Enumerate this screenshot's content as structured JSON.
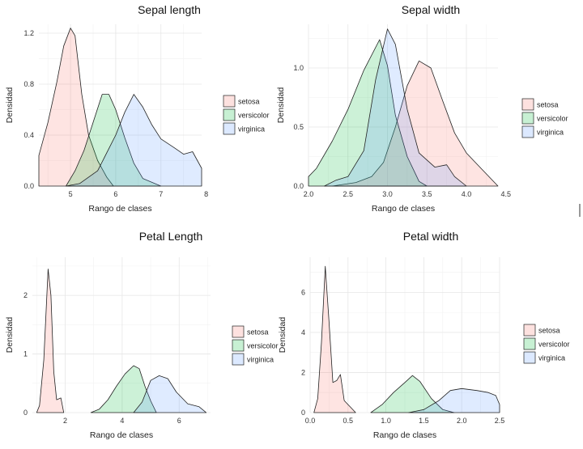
{
  "legend_entries": [
    "setosa",
    "versicolor",
    "virginica"
  ],
  "colors": {
    "setosa": "#f8766d",
    "versicolor": "#00ba38",
    "virginica": "#619cff"
  },
  "chart_data": [
    {
      "type": "area",
      "title": "Sepal length",
      "xlabel": "Rango de clases",
      "ylabel": "Densidad",
      "xlim": [
        4.3,
        7.9
      ],
      "ylim": [
        0,
        1.27
      ],
      "xticks": [
        5,
        6,
        7,
        8
      ],
      "yticks": [
        0.0,
        0.4,
        0.8,
        1.2
      ],
      "xtick_labels": [
        "5",
        "6",
        "7",
        "8"
      ],
      "ytick_labels": [
        "0.0",
        "0.4",
        "0.8",
        "1.2"
      ],
      "legend": "right",
      "grid": true,
      "series": [
        {
          "name": "setosa",
          "points": [
            [
              4.3,
              0.24
            ],
            [
              4.5,
              0.5
            ],
            [
              4.7,
              0.82
            ],
            [
              4.85,
              1.1
            ],
            [
              5.0,
              1.24
            ],
            [
              5.1,
              1.18
            ],
            [
              5.25,
              0.72
            ],
            [
              5.4,
              0.4
            ],
            [
              5.6,
              0.2
            ],
            [
              5.8,
              0.07
            ],
            [
              5.95,
              0.0
            ]
          ]
        },
        {
          "name": "versicolor",
          "points": [
            [
              4.9,
              0.0
            ],
            [
              5.1,
              0.12
            ],
            [
              5.3,
              0.28
            ],
            [
              5.5,
              0.5
            ],
            [
              5.7,
              0.72
            ],
            [
              5.85,
              0.72
            ],
            [
              6.0,
              0.6
            ],
            [
              6.2,
              0.38
            ],
            [
              6.4,
              0.18
            ],
            [
              6.6,
              0.06
            ],
            [
              7.0,
              0.0
            ]
          ]
        },
        {
          "name": "virginica",
          "points": [
            [
              4.9,
              0.0
            ],
            [
              5.2,
              0.02
            ],
            [
              5.6,
              0.12
            ],
            [
              6.0,
              0.4
            ],
            [
              6.2,
              0.58
            ],
            [
              6.4,
              0.72
            ],
            [
              6.6,
              0.62
            ],
            [
              6.8,
              0.48
            ],
            [
              7.0,
              0.37
            ],
            [
              7.3,
              0.3
            ],
            [
              7.5,
              0.25
            ],
            [
              7.7,
              0.27
            ],
            [
              7.9,
              0.14
            ],
            [
              7.9,
              0.0
            ]
          ]
        }
      ]
    },
    {
      "type": "area",
      "title": "Sepal width",
      "xlabel": "Rango de clases",
      "ylabel": "Densidad",
      "xlim": [
        2.0,
        4.4
      ],
      "ylim": [
        0,
        1.37
      ],
      "xticks": [
        2.0,
        2.5,
        3.0,
        3.5,
        4.0,
        4.5
      ],
      "yticks": [
        0.0,
        0.5,
        1.0
      ],
      "xtick_labels": [
        "2.0",
        "2.5",
        "3.0",
        "3.5",
        "4.0",
        "4.5"
      ],
      "ytick_labels": [
        "0.0",
        "0.5",
        "1.0"
      ],
      "legend": "right",
      "grid": true,
      "series": [
        {
          "name": "setosa",
          "points": [
            [
              2.3,
              0.0
            ],
            [
              2.6,
              0.03
            ],
            [
              2.8,
              0.08
            ],
            [
              2.95,
              0.2
            ],
            [
              3.1,
              0.5
            ],
            [
              3.25,
              0.85
            ],
            [
              3.4,
              1.06
            ],
            [
              3.55,
              1.0
            ],
            [
              3.7,
              0.72
            ],
            [
              3.85,
              0.45
            ],
            [
              4.0,
              0.28
            ],
            [
              4.2,
              0.14
            ],
            [
              4.4,
              0.0
            ]
          ]
        },
        {
          "name": "versicolor",
          "points": [
            [
              2.0,
              0.08
            ],
            [
              2.1,
              0.15
            ],
            [
              2.3,
              0.38
            ],
            [
              2.5,
              0.65
            ],
            [
              2.7,
              0.98
            ],
            [
              2.9,
              1.24
            ],
            [
              3.0,
              1.02
            ],
            [
              3.1,
              0.6
            ],
            [
              3.25,
              0.25
            ],
            [
              3.4,
              0.04
            ],
            [
              3.5,
              0.0
            ]
          ]
        },
        {
          "name": "virginica",
          "points": [
            [
              2.2,
              0.0
            ],
            [
              2.35,
              0.05
            ],
            [
              2.5,
              0.08
            ],
            [
              2.7,
              0.3
            ],
            [
              2.85,
              0.9
            ],
            [
              3.0,
              1.33
            ],
            [
              3.1,
              1.2
            ],
            [
              3.25,
              0.65
            ],
            [
              3.4,
              0.28
            ],
            [
              3.6,
              0.16
            ],
            [
              3.75,
              0.18
            ],
            [
              3.85,
              0.08
            ],
            [
              4.0,
              0.0
            ]
          ]
        }
      ]
    },
    {
      "type": "area",
      "title": "Petal Length",
      "xlabel": "Rango de clases",
      "ylabel": "Densidad",
      "xlim": [
        0.85,
        7.1
      ],
      "ylim": [
        0,
        2.65
      ],
      "xticks": [
        2,
        4,
        6
      ],
      "yticks": [
        0,
        1,
        2
      ],
      "xtick_labels": [
        "2",
        "4",
        "6"
      ],
      "ytick_labels": [
        "0",
        "1",
        "2"
      ],
      "legend": "right",
      "grid": true,
      "series": [
        {
          "name": "setosa",
          "points": [
            [
              1.0,
              0.0
            ],
            [
              1.1,
              0.12
            ],
            [
              1.25,
              0.9
            ],
            [
              1.4,
              2.45
            ],
            [
              1.5,
              2.0
            ],
            [
              1.6,
              0.7
            ],
            [
              1.7,
              0.22
            ],
            [
              1.85,
              0.25
            ],
            [
              1.95,
              0.0
            ]
          ]
        },
        {
          "name": "versicolor",
          "points": [
            [
              2.9,
              0.0
            ],
            [
              3.2,
              0.06
            ],
            [
              3.5,
              0.22
            ],
            [
              3.8,
              0.45
            ],
            [
              4.1,
              0.66
            ],
            [
              4.4,
              0.8
            ],
            [
              4.6,
              0.75
            ],
            [
              4.8,
              0.45
            ],
            [
              5.0,
              0.2
            ],
            [
              5.2,
              0.0
            ]
          ]
        },
        {
          "name": "virginica",
          "points": [
            [
              4.4,
              0.0
            ],
            [
              4.7,
              0.18
            ],
            [
              5.0,
              0.55
            ],
            [
              5.3,
              0.63
            ],
            [
              5.6,
              0.58
            ],
            [
              5.9,
              0.35
            ],
            [
              6.3,
              0.15
            ],
            [
              6.7,
              0.1
            ],
            [
              6.95,
              0.0
            ]
          ]
        }
      ]
    },
    {
      "type": "area",
      "title": "Petal width",
      "xlabel": "Rango de clases",
      "ylabel": "Densidad",
      "xlim": [
        0.0,
        2.5
      ],
      "ylim": [
        0,
        7.75
      ],
      "xticks": [
        0.0,
        0.5,
        1.0,
        1.5,
        2.0,
        2.5
      ],
      "yticks": [
        0,
        2,
        4,
        6
      ],
      "xtick_labels": [
        "0.0",
        "0.5",
        "1.0",
        "1.5",
        "2.0",
        "2.5"
      ],
      "ytick_labels": [
        "0",
        "2",
        "4",
        "6"
      ],
      "legend": "right",
      "grid": true,
      "series": [
        {
          "name": "setosa",
          "points": [
            [
              0.05,
              0.0
            ],
            [
              0.1,
              0.7
            ],
            [
              0.15,
              3.5
            ],
            [
              0.2,
              7.3
            ],
            [
              0.25,
              4.5
            ],
            [
              0.3,
              1.5
            ],
            [
              0.35,
              1.6
            ],
            [
              0.4,
              1.9
            ],
            [
              0.45,
              0.6
            ],
            [
              0.5,
              0.4
            ],
            [
              0.55,
              0.2
            ],
            [
              0.6,
              0.0
            ]
          ]
        },
        {
          "name": "versicolor",
          "points": [
            [
              0.8,
              0.0
            ],
            [
              0.95,
              0.4
            ],
            [
              1.1,
              1.0
            ],
            [
              1.25,
              1.5
            ],
            [
              1.35,
              1.85
            ],
            [
              1.45,
              1.55
            ],
            [
              1.6,
              0.7
            ],
            [
              1.75,
              0.15
            ],
            [
              1.9,
              0.0
            ]
          ]
        },
        {
          "name": "virginica",
          "points": [
            [
              1.3,
              0.0
            ],
            [
              1.5,
              0.15
            ],
            [
              1.7,
              0.6
            ],
            [
              1.85,
              1.1
            ],
            [
              2.0,
              1.2
            ],
            [
              2.2,
              1.1
            ],
            [
              2.35,
              1.0
            ],
            [
              2.45,
              0.85
            ],
            [
              2.5,
              0.4
            ],
            [
              2.5,
              0.0
            ]
          ]
        }
      ]
    }
  ]
}
